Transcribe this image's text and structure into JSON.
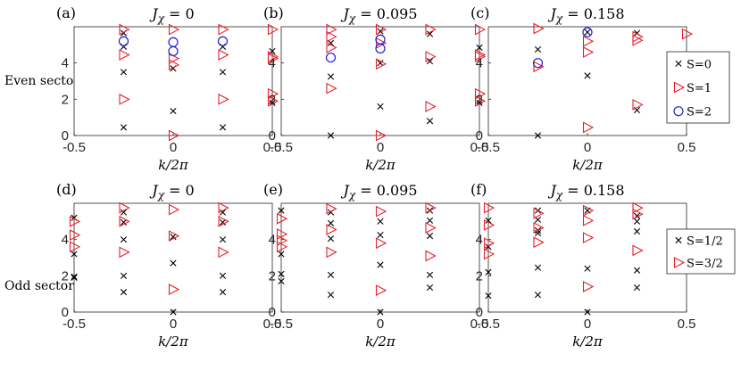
{
  "figure": {
    "sector_labels": {
      "even": "Even sector",
      "odd": "Odd sector"
    },
    "legend_even": [
      {
        "label": "S=0",
        "marker": "x",
        "color": "#000000"
      },
      {
        "label": "S=1",
        "marker": "triangle",
        "color": "#e8202a"
      },
      {
        "label": "S=2",
        "marker": "circle",
        "color": "#1f1fd6"
      }
    ],
    "legend_odd": [
      {
        "label": "S=1/2",
        "marker": "x",
        "color": "#000000"
      },
      {
        "label": "S=3/2",
        "marker": "triangle",
        "color": "#e8202a"
      }
    ]
  },
  "chart_data": [
    {
      "type": "scatter",
      "panel": "(a)",
      "title": "Jχ = 0",
      "title_sym": "J",
      "title_sub": "χ",
      "title_val": " = 0",
      "xlabel": "k/2π",
      "xlim": [
        -0.5,
        0.5
      ],
      "ylim": [
        0,
        6
      ],
      "xticks": [
        "-0.5",
        "0",
        "0.5"
      ],
      "yticks": [
        "0",
        "2",
        "4"
      ],
      "series": [
        {
          "marker": "x",
          "color": "#000000",
          "x": [
            -0.25,
            -0.25,
            -0.25,
            -0.25,
            0,
            0,
            0.25,
            0.25,
            0.25,
            0.5,
            0.5
          ],
          "y": [
            0.45,
            3.5,
            4.9,
            5.65,
            1.35,
            3.7,
            0.45,
            3.5,
            4.9,
            1.8,
            4.65
          ]
        },
        {
          "marker": "triangle",
          "color": "#e8202a",
          "x": [
            -0.25,
            -0.25,
            -0.25,
            0,
            0,
            0,
            0,
            0.25,
            0.25,
            0.25,
            0.5,
            0.5,
            0.5,
            0.5,
            0.5
          ],
          "y": [
            2.0,
            4.45,
            5.85,
            0.0,
            3.9,
            4.25,
            5.85,
            2.0,
            4.45,
            5.85,
            1.9,
            2.3,
            4.25,
            4.35,
            5.85
          ]
        },
        {
          "marker": "circle",
          "color": "#1f1fd6",
          "x": [
            -0.25,
            0,
            0,
            0.25
          ],
          "y": [
            5.2,
            4.65,
            5.15,
            5.2
          ]
        }
      ]
    },
    {
      "type": "scatter",
      "panel": "(b)",
      "title": "Jχ = 0.095",
      "title_sym": "J",
      "title_sub": "χ",
      "title_val": " = 0.095",
      "xlabel": "k/2π",
      "xlim": [
        -0.5,
        0.5
      ],
      "ylim": [
        0,
        6
      ],
      "xticks": [
        "-0.5",
        "0",
        "0.5"
      ],
      "yticks": [
        "0",
        "2",
        "4"
      ],
      "series": [
        {
          "marker": "x",
          "color": "#000000",
          "x": [
            -0.25,
            -0.25,
            -0.25,
            0,
            0,
            0,
            0.25,
            0.25,
            0.25,
            0.5,
            0.5
          ],
          "y": [
            0.0,
            3.25,
            5.1,
            1.6,
            4.0,
            5.75,
            0.8,
            4.1,
            5.6,
            1.8,
            4.85
          ]
        },
        {
          "marker": "triangle",
          "color": "#e8202a",
          "x": [
            -0.25,
            -0.25,
            -0.25,
            -0.25,
            0,
            0,
            0,
            0,
            0.25,
            0.25,
            0.25,
            0.5,
            0.5,
            0.5,
            0.5,
            0.5
          ],
          "y": [
            2.6,
            4.85,
            5.45,
            5.85,
            0.0,
            3.95,
            5.1,
            5.85,
            1.6,
            4.35,
            5.85,
            1.9,
            2.3,
            4.35,
            4.45,
            5.85
          ]
        },
        {
          "marker": "circle",
          "color": "#1f1fd6",
          "x": [
            -0.25,
            0,
            0
          ],
          "y": [
            4.3,
            4.8,
            5.3
          ]
        }
      ]
    },
    {
      "type": "scatter",
      "panel": "(c)",
      "title": "Jχ = 0.158",
      "title_sym": "J",
      "title_sub": "χ",
      "title_val": " = 0.158",
      "xlabel": "k/2π",
      "xlim": [
        -0.5,
        0.5
      ],
      "ylim": [
        0,
        6
      ],
      "xticks": [
        "-0.5",
        "0",
        "0.5"
      ],
      "yticks": [
        "0",
        "2",
        "4"
      ],
      "series": [
        {
          "marker": "x",
          "color": "#000000",
          "x": [
            -0.25,
            -0.25,
            0,
            0,
            0.25,
            0.25,
            0.5
          ],
          "y": [
            0.0,
            4.75,
            3.3,
            5.7,
            1.4,
            5.65,
            2.4
          ]
        },
        {
          "marker": "triangle",
          "color": "#e8202a",
          "x": [
            -0.25,
            -0.25,
            0,
            0,
            0,
            0.25,
            0.25,
            0.25,
            0.5,
            0.5,
            0.5
          ],
          "y": [
            3.8,
            5.9,
            0.45,
            4.6,
            5.2,
            1.7,
            5.25,
            5.45,
            2.55,
            2.9,
            5.6
          ]
        },
        {
          "marker": "circle",
          "color": "#1f1fd6",
          "x": [
            -0.25,
            0
          ],
          "y": [
            4.0,
            5.7
          ]
        }
      ]
    },
    {
      "type": "scatter",
      "panel": "(d)",
      "title": "Jχ = 0",
      "title_sym": "J",
      "title_sub": "χ",
      "title_val": " = 0",
      "xlabel": "k/2π",
      "xlim": [
        -0.5,
        0.5
      ],
      "ylim": [
        0,
        6
      ],
      "xticks": [
        "-0.5",
        "0",
        "0.5"
      ],
      "yticks": [
        "0",
        "2",
        "4"
      ],
      "series": [
        {
          "marker": "x",
          "color": "#000000",
          "x": [
            -0.5,
            -0.5,
            -0.5,
            -0.5,
            -0.25,
            -0.25,
            -0.25,
            -0.25,
            -0.25,
            0,
            0,
            0,
            0.25,
            0.25,
            0.25,
            0.25,
            0.25
          ],
          "y": [
            1.9,
            1.95,
            3.2,
            5.2,
            1.1,
            2.0,
            4.0,
            4.95,
            5.5,
            0.0,
            2.7,
            4.15,
            1.1,
            2.0,
            4.0,
            4.95,
            5.5
          ]
        },
        {
          "marker": "triangle",
          "color": "#e8202a",
          "x": [
            -0.5,
            -0.5,
            -0.5,
            -0.25,
            -0.25,
            -0.25,
            0,
            0,
            0,
            0.25,
            0.25,
            0.25
          ],
          "y": [
            3.6,
            4.25,
            5.0,
            3.3,
            5.0,
            5.75,
            1.25,
            4.2,
            5.65,
            3.3,
            5.0,
            5.75
          ]
        }
      ]
    },
    {
      "type": "scatter",
      "panel": "(e)",
      "title": "Jχ = 0.095",
      "title_sym": "J",
      "title_sub": "χ",
      "title_val": " = 0.095",
      "xlabel": "k/2π",
      "xlim": [
        -0.5,
        0.5
      ],
      "ylim": [
        0,
        6
      ],
      "xticks": [
        "-0.5",
        "0",
        "0.5"
      ],
      "yticks": [
        "0",
        "2",
        "4"
      ],
      "series": [
        {
          "marker": "x",
          "color": "#000000",
          "x": [
            -0.5,
            -0.5,
            -0.5,
            -0.5,
            -0.25,
            -0.25,
            -0.25,
            -0.25,
            -0.25,
            0,
            0,
            0,
            0,
            0.25,
            0.25,
            0.25,
            0.25,
            0.25
          ],
          "y": [
            1.7,
            2.1,
            3.2,
            5.6,
            0.95,
            2.05,
            4.05,
            4.9,
            5.5,
            0.0,
            2.6,
            4.25,
            5.0,
            1.35,
            2.05,
            4.2,
            5.05,
            5.6
          ]
        },
        {
          "marker": "triangle",
          "color": "#e8202a",
          "x": [
            -0.5,
            -0.5,
            -0.5,
            -0.5,
            -0.25,
            -0.25,
            -0.25,
            0,
            0,
            0,
            0.25,
            0.25,
            0.25
          ],
          "y": [
            3.6,
            3.95,
            4.3,
            5.15,
            3.3,
            4.55,
            5.7,
            1.2,
            3.8,
            5.55,
            3.1,
            4.65,
            5.75
          ]
        }
      ]
    },
    {
      "type": "scatter",
      "panel": "(f)",
      "title": "Jχ = 0.158",
      "title_sym": "J",
      "title_sub": "χ",
      "title_val": " = 0.158",
      "xlabel": "k/2π",
      "xlim": [
        -0.5,
        0.5
      ],
      "ylim": [
        0,
        6
      ],
      "xticks": [
        "-0.5",
        "0",
        "0.5"
      ],
      "yticks": [
        "0",
        "2",
        "4"
      ],
      "series": [
        {
          "marker": "x",
          "color": "#000000",
          "x": [
            -0.5,
            -0.5,
            -0.5,
            -0.5,
            -0.25,
            -0.25,
            -0.25,
            -0.25,
            -0.25,
            -0.25,
            0,
            0,
            0,
            0.25,
            0.25,
            0.25,
            0.25,
            0.25
          ],
          "y": [
            0.9,
            2.2,
            3.6,
            5.05,
            0.95,
            2.45,
            4.35,
            4.5,
            5.1,
            5.6,
            0.0,
            2.4,
            5.6,
            1.35,
            2.3,
            4.45,
            5.0,
            5.3
          ]
        },
        {
          "marker": "triangle",
          "color": "#e8202a",
          "x": [
            -0.5,
            -0.5,
            -0.5,
            -0.5,
            -0.25,
            -0.25,
            -0.25,
            0,
            0,
            0,
            0,
            0.25,
            0.25,
            0.25
          ],
          "y": [
            3.2,
            3.8,
            4.8,
            5.75,
            3.85,
            4.65,
            5.45,
            1.4,
            4.1,
            5.05,
            5.6,
            3.4,
            5.4,
            5.75
          ]
        }
      ]
    }
  ]
}
